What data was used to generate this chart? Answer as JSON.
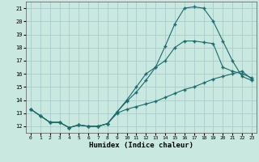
{
  "xlabel": "Humidex (Indice chaleur)",
  "xlim": [
    -0.5,
    23.5
  ],
  "ylim": [
    11.5,
    21.5
  ],
  "xticks": [
    0,
    1,
    2,
    3,
    4,
    5,
    6,
    7,
    8,
    9,
    10,
    11,
    12,
    13,
    14,
    15,
    16,
    17,
    18,
    19,
    20,
    21,
    22,
    23
  ],
  "yticks": [
    12,
    13,
    14,
    15,
    16,
    17,
    18,
    19,
    20,
    21
  ],
  "bg_color": "#c8e8e0",
  "grid_color": "#a8cccc",
  "line_color": "#1a6b6b",
  "curve1_x": [
    0,
    1,
    2,
    3,
    4,
    5,
    6,
    7,
    8,
    9,
    10,
    11,
    12,
    13,
    14,
    15,
    16,
    17,
    18,
    19,
    20,
    21,
    22,
    23
  ],
  "curve1_y": [
    13.3,
    12.8,
    12.3,
    12.3,
    11.9,
    12.1,
    12.0,
    12.0,
    12.2,
    13.1,
    13.9,
    14.6,
    15.5,
    16.5,
    18.1,
    19.8,
    21.0,
    21.1,
    21.0,
    20.0,
    18.5,
    17.0,
    15.8,
    15.5
  ],
  "curve2_x": [
    0,
    1,
    2,
    3,
    4,
    5,
    6,
    7,
    8,
    9,
    10,
    11,
    12,
    13,
    14,
    15,
    16,
    17,
    18,
    19,
    20,
    21,
    22,
    23
  ],
  "curve2_y": [
    13.3,
    12.8,
    12.3,
    12.3,
    11.9,
    12.1,
    12.0,
    12.0,
    12.2,
    13.1,
    14.0,
    15.0,
    16.0,
    16.5,
    17.0,
    18.0,
    18.5,
    18.5,
    18.4,
    18.3,
    16.5,
    16.2,
    16.0,
    15.7
  ],
  "curve3_x": [
    0,
    1,
    2,
    3,
    4,
    5,
    6,
    7,
    8,
    9,
    10,
    11,
    12,
    13,
    14,
    15,
    16,
    17,
    18,
    19,
    20,
    21,
    22,
    23
  ],
  "curve3_y": [
    13.3,
    12.8,
    12.3,
    12.3,
    11.9,
    12.1,
    12.0,
    12.0,
    12.2,
    13.0,
    13.3,
    13.5,
    13.7,
    13.9,
    14.2,
    14.5,
    14.8,
    15.0,
    15.3,
    15.6,
    15.8,
    16.0,
    16.2,
    15.6
  ]
}
